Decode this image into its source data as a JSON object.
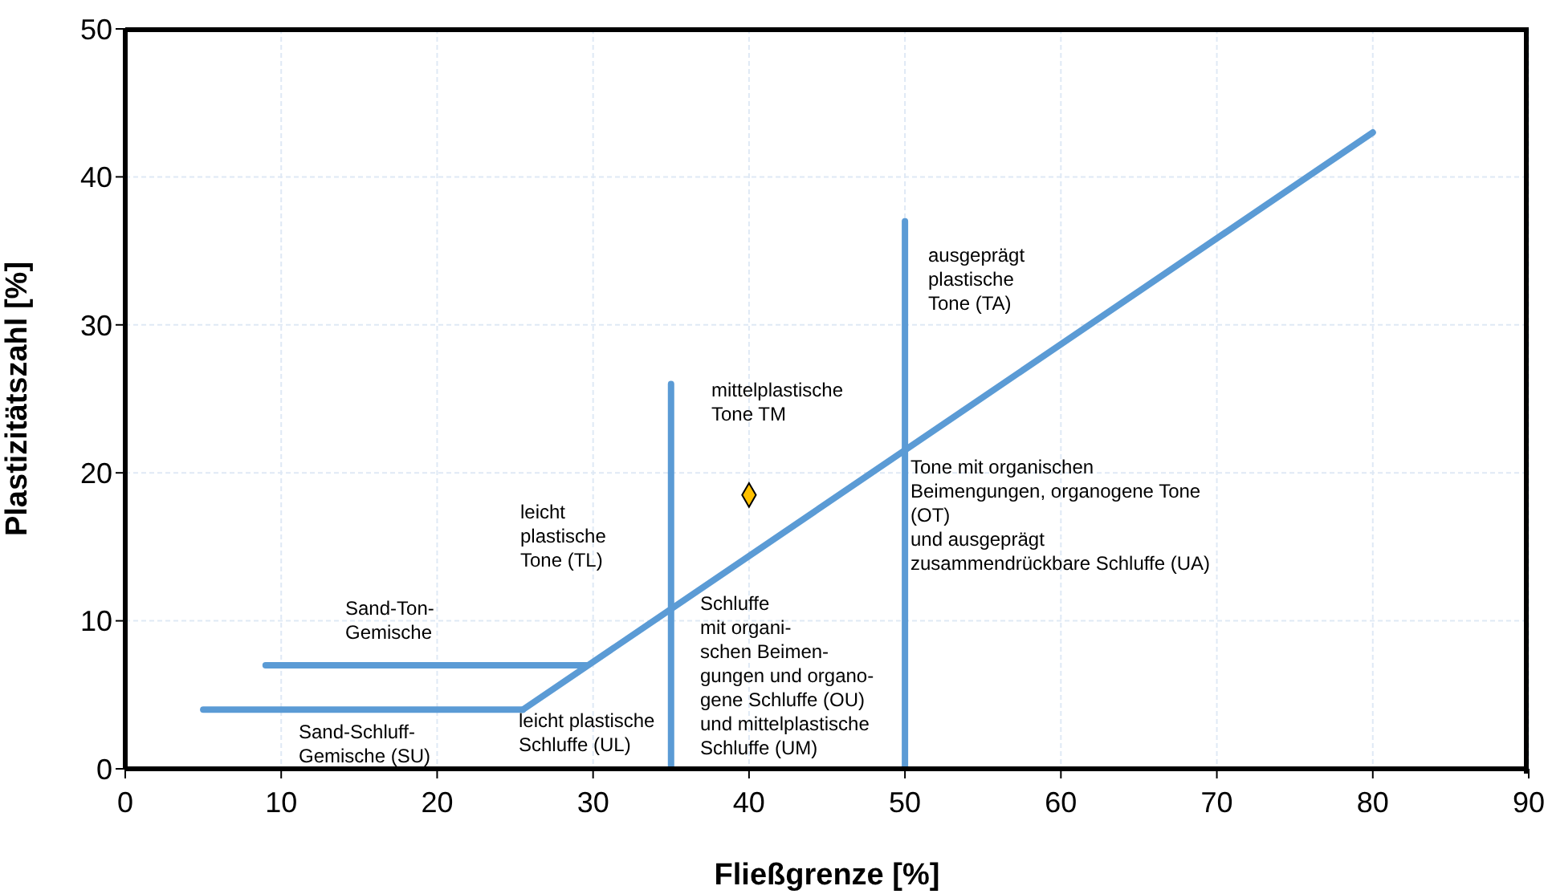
{
  "chart_data": {
    "type": "line",
    "xlabel": "Fließgrenze [%]",
    "ylabel": "Plastizitätszahl [%]",
    "xlim": [
      0,
      90
    ],
    "xticks": [
      0,
      10,
      20,
      30,
      40,
      50,
      60,
      70,
      80,
      90
    ],
    "ylim": [
      0,
      50
    ],
    "yticks": [
      0,
      10,
      20,
      30,
      40,
      50
    ],
    "grid": true,
    "marker": "none",
    "line_style": "solid",
    "series": [
      {
        "color": "#5b9bd5",
        "x": [
          25.5,
          80
        ],
        "values": [
          4,
          43
        ]
      },
      {
        "color": "#5b9bd5",
        "x": [
          5,
          25.5
        ],
        "values": [
          4,
          4
        ]
      },
      {
        "color": "#5b9bd5",
        "x": [
          9,
          29.6
        ],
        "values": [
          7,
          7
        ]
      },
      {
        "color": "#5b9bd5",
        "x": [
          35,
          35
        ],
        "values": [
          0,
          26
        ]
      },
      {
        "color": "#5b9bd5",
        "x": [
          50,
          50
        ],
        "values": [
          0,
          37
        ]
      },
      {
        "type": "scatter",
        "marker": "diamond",
        "color": "#ffc000",
        "x": [
          40
        ],
        "values": [
          18.5
        ]
      }
    ],
    "annotations": [
      "Sand-Ton-\nGemische",
      "Sand-Schluff-\nGemische (SU)",
      "leicht\nplastische\nTone (TL)",
      "leicht plastische\nSchluffe (UL)",
      "mittelplastische\nTone TM",
      "Schluffe\nmit organi-\nschen Beimen-\ngungen und organo-\ngene Schluffe (OU)\nund mittelplastische\nSchluffe (UM)",
      "ausgeprägt\nplastische\nTone (TA)",
      "Tone mit organischen\nBeimengungen, organogene Tone\n(OT)\nund ausgeprägt\nzusammendrückbare Schluffe (UA)"
    ]
  }
}
